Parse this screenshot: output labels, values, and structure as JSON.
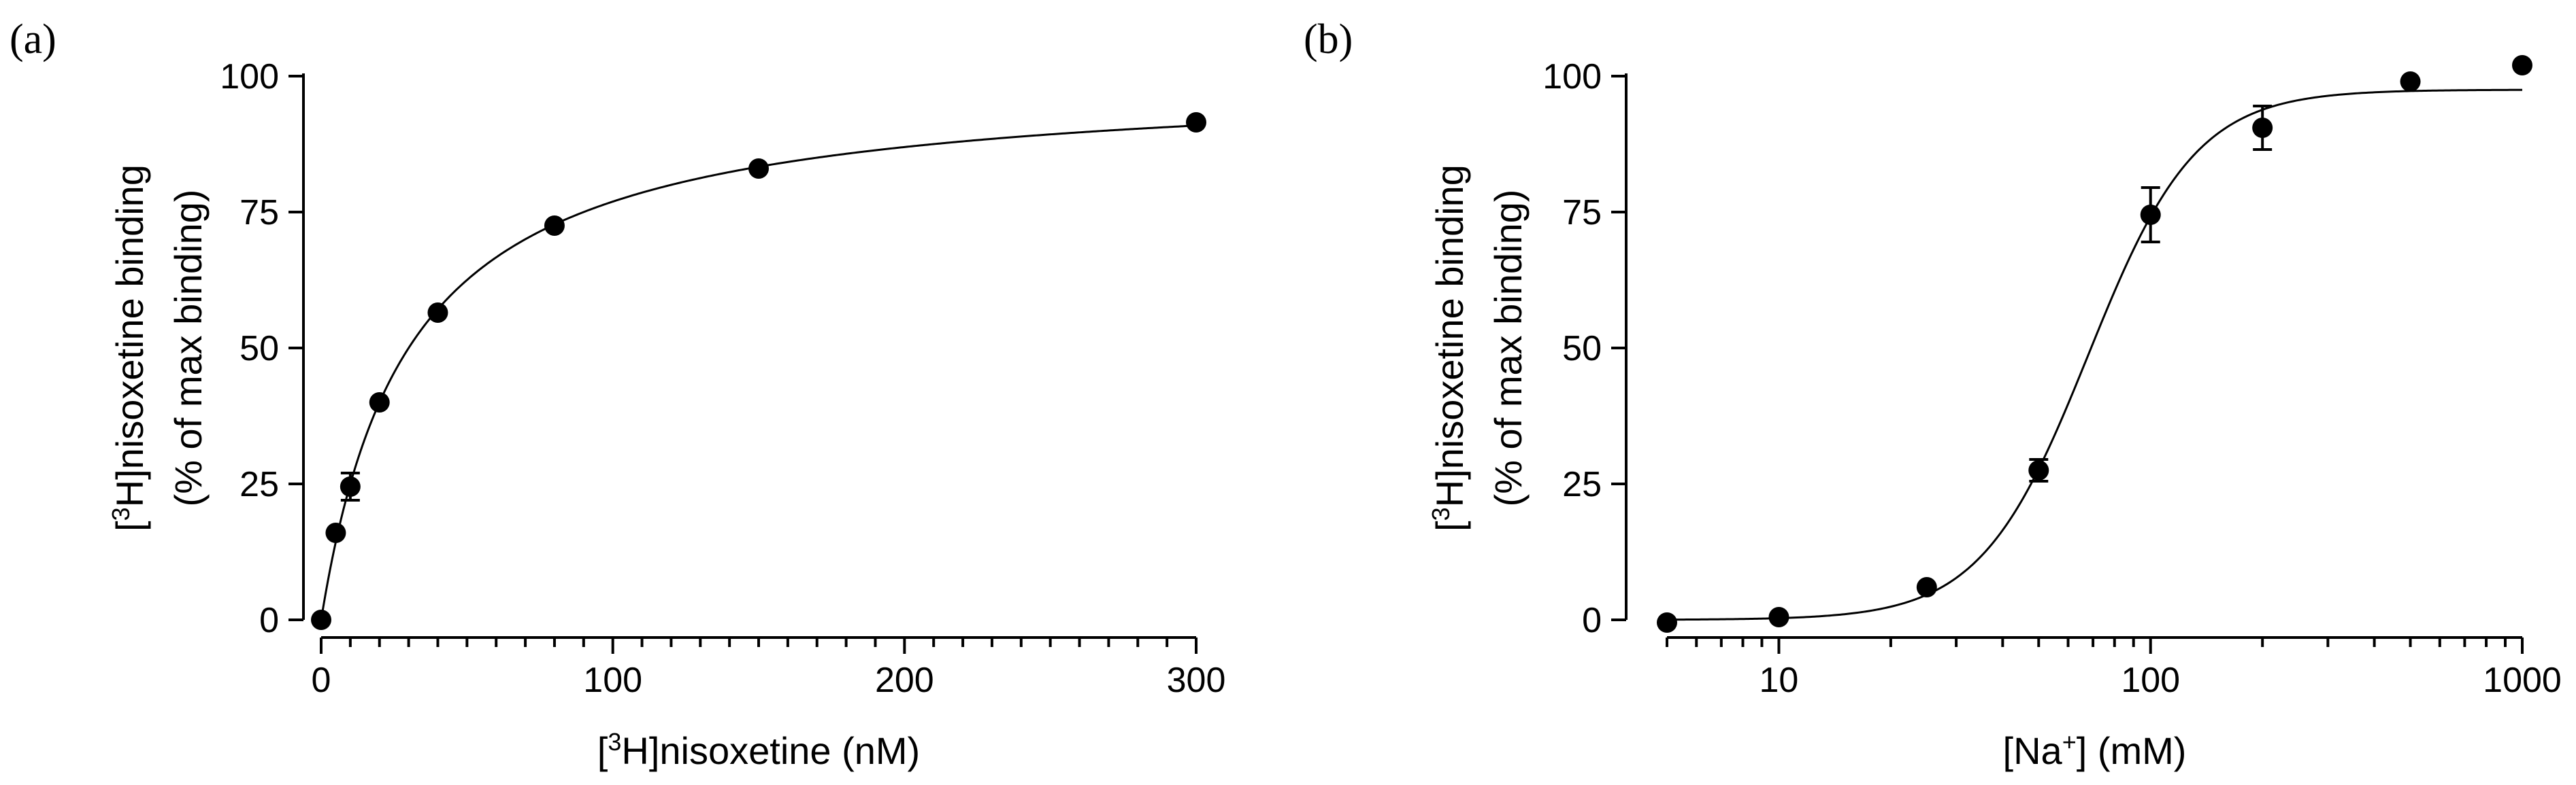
{
  "chart_data": [
    {
      "panel_label": "(a)",
      "type": "scatter",
      "x_scale": "linear",
      "xlim": [
        0,
        300
      ],
      "ylim": [
        0,
        100
      ],
      "x_ticks": [
        0,
        100,
        200,
        300
      ],
      "x_tick_labels": [
        "0",
        "100",
        "200",
        "300"
      ],
      "x_minor_step": 10,
      "y_ticks": [
        0,
        25,
        50,
        75,
        100
      ],
      "y_tick_labels": [
        "0",
        "25",
        "50",
        "75",
        "100"
      ],
      "xlabel": {
        "pre": "[",
        "sup": "3",
        "post": "H]nisoxetine (nM)"
      },
      "ylabel_line1": {
        "pre": "[",
        "sup": "3",
        "post": "H]nisoxetine binding"
      },
      "ylabel_line2": "(% of max binding)",
      "series": [
        {
          "name": "binding",
          "points": [
            {
              "x": 0,
              "y": 0,
              "err": 0
            },
            {
              "x": 5,
              "y": 16,
              "err": 0
            },
            {
              "x": 10,
              "y": 24.5,
              "err": 2.5
            },
            {
              "x": 20,
              "y": 40,
              "err": 0
            },
            {
              "x": 40,
              "y": 56.5,
              "err": 0
            },
            {
              "x": 80,
              "y": 72.5,
              "err": 0
            },
            {
              "x": 150,
              "y": 83,
              "err": 0
            },
            {
              "x": 300,
              "y": 91.5,
              "err": 0
            }
          ]
        }
      ],
      "fit": {
        "model": "one-site saturation",
        "bmax": 100,
        "kd": 30
      },
      "grid": false
    },
    {
      "panel_label": "(b)",
      "type": "scatter",
      "x_scale": "log",
      "xlim": [
        5,
        1000
      ],
      "ylim": [
        0,
        100
      ],
      "x_ticks": [
        10,
        100,
        1000
      ],
      "x_tick_labels": [
        "10",
        "100",
        "1000"
      ],
      "y_ticks": [
        0,
        25,
        50,
        75,
        100
      ],
      "y_tick_labels": [
        "0",
        "25",
        "50",
        "75",
        "100"
      ],
      "xlabel": {
        "pre": "[Na",
        "sup": "+",
        "post": "] (mM)"
      },
      "ylabel_line1": {
        "pre": "[",
        "sup": "3",
        "post": "H]nisoxetine binding"
      },
      "ylabel_line2": "(% of max binding)",
      "series": [
        {
          "name": "binding",
          "points": [
            {
              "x": 5,
              "y": -0.5,
              "err": 0
            },
            {
              "x": 10,
              "y": 0.5,
              "err": 0
            },
            {
              "x": 25,
              "y": 6,
              "err": 0
            },
            {
              "x": 50,
              "y": 27.5,
              "err": 2
            },
            {
              "x": 100,
              "y": 74.5,
              "err": 5
            },
            {
              "x": 200,
              "y": 90.5,
              "err": 4
            },
            {
              "x": 500,
              "y": 99,
              "err": 0
            },
            {
              "x": 1000,
              "y": 102,
              "err": 0
            }
          ]
        }
      ],
      "fit": {
        "model": "sigmoidal dose-response",
        "bottom": 0,
        "top": 97.5,
        "ec50": 68,
        "hill": 3
      },
      "grid": false
    }
  ]
}
